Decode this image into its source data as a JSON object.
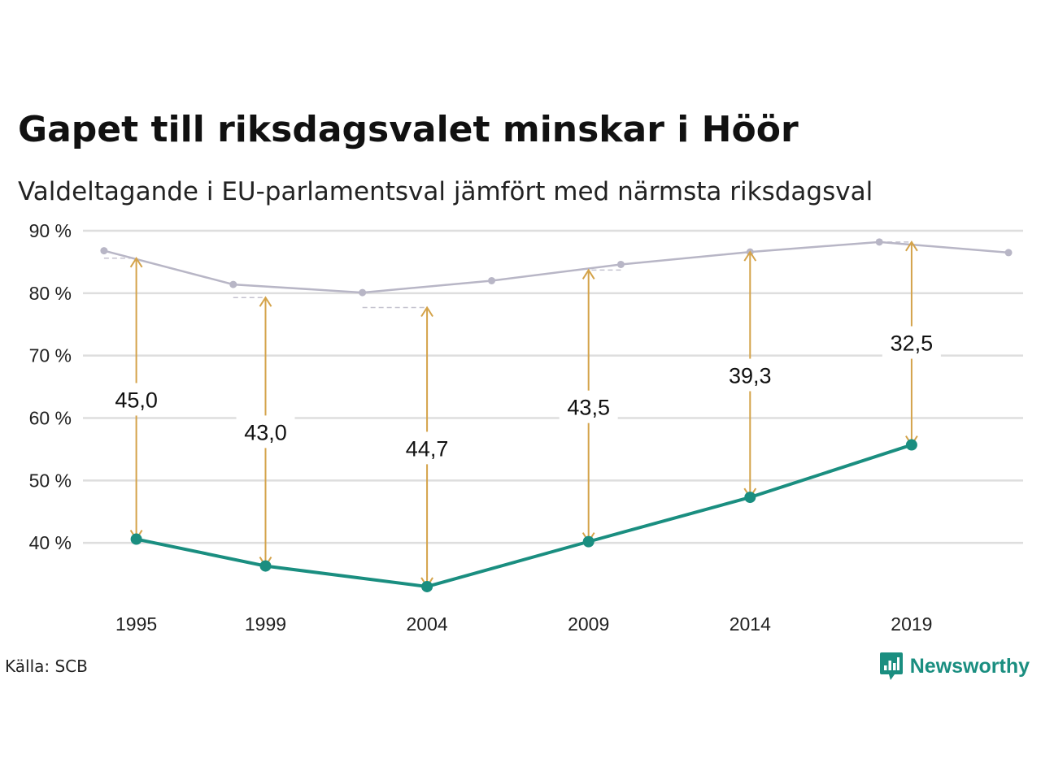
{
  "title": "Gapet till riksdagsvalet minskar i Höör",
  "subtitle": "Valdeltagande i EU-parlamentsval jämfört med närmsta riksdagsval",
  "source": "Källa: SCB",
  "brand": "Newsworthy",
  "colors": {
    "eu": "#1a8e80",
    "riksdag": "#b8b6c6",
    "arrow": "#d4a34a",
    "grid": "#dedede",
    "brand": "#1a8e80"
  },
  "chart_data": {
    "type": "line",
    "y_ticks": [
      {
        "value": 90,
        "label": "90 %"
      },
      {
        "value": 80,
        "label": "80 %"
      },
      {
        "value": 70,
        "label": "70 %"
      },
      {
        "value": 60,
        "label": "60 %"
      },
      {
        "value": 50,
        "label": "50 %"
      },
      {
        "value": 40,
        "label": "40 %"
      }
    ],
    "x_ticks": [
      "1995",
      "1999",
      "2004",
      "2009",
      "2014",
      "2019"
    ],
    "ylim": [
      30,
      90
    ],
    "xlim": [
      1993.6,
      2022.2
    ],
    "grid": true,
    "series": [
      {
        "values": [
          {
            "x": 1994,
            "y": 86.8
          },
          {
            "x": 1998,
            "y": 81.4
          },
          {
            "x": 2002,
            "y": 80.1
          },
          {
            "x": 2006,
            "y": 82.0
          },
          {
            "x": 2010,
            "y": 84.6
          },
          {
            "x": 2014,
            "y": 86.6
          },
          {
            "x": 2018,
            "y": 88.2
          },
          {
            "x": 2022,
            "y": 86.5
          }
        ]
      },
      {
        "values": [
          {
            "x": 1995,
            "y": 40.6
          },
          {
            "x": 1999,
            "y": 36.3
          },
          {
            "x": 2004,
            "y": 33.0
          },
          {
            "x": 2009,
            "y": 40.2
          },
          {
            "x": 2014,
            "y": 47.3
          },
          {
            "x": 2019,
            "y": 55.7
          }
        ]
      }
    ],
    "gaps": [
      {
        "x": 1995,
        "from": 40.6,
        "to": 85.6,
        "label": "45,0",
        "label_y": 63.0
      },
      {
        "x": 1999,
        "from": 36.3,
        "to": 79.3,
        "label": "43,0",
        "label_y": 57.8
      },
      {
        "x": 2004,
        "from": 33.0,
        "to": 77.7,
        "label": "44,7",
        "label_y": 55.2
      },
      {
        "x": 2009,
        "from": 40.2,
        "to": 83.7,
        "label": "43,5",
        "label_y": 61.8
      },
      {
        "x": 2014,
        "from": 47.3,
        "to": 86.6,
        "label": "39,3",
        "label_y": 66.9
      },
      {
        "x": 2019,
        "from": 55.7,
        "to": 88.2,
        "label": "32,5",
        "label_y": 72.1
      }
    ]
  }
}
